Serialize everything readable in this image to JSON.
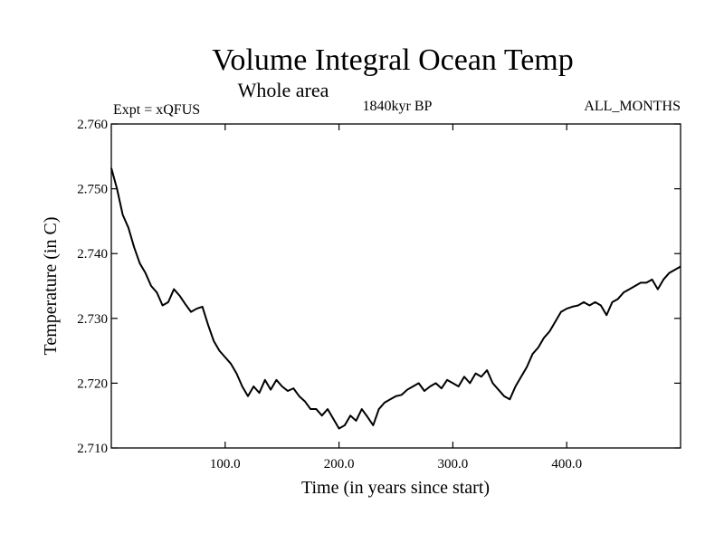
{
  "chart_data": {
    "type": "line",
    "title": "Volume Integral Ocean Temp",
    "subtitle": "Whole area",
    "period_label": "1840kyr BP",
    "experiment_label": "Expt = xQFUS",
    "months_label": "ALL_MONTHS",
    "xlabel": "Time (in years since start)",
    "ylabel": "Temperature (in C)",
    "xlim": [
      0,
      500
    ],
    "ylim": [
      2.71,
      2.76
    ],
    "x_ticks": [
      100,
      200,
      300,
      400
    ],
    "x_tick_labels": [
      "100.0",
      "200.0",
      "300.0",
      "400.0"
    ],
    "y_ticks": [
      2.71,
      2.72,
      2.73,
      2.74,
      2.75,
      2.76
    ],
    "y_tick_labels": [
      "2.710",
      "2.720",
      "2.730",
      "2.740",
      "2.750",
      "2.760"
    ],
    "series": [
      {
        "name": "Volume integral ocean temperature",
        "color": "#000000",
        "x": [
          0,
          5,
          10,
          15,
          20,
          25,
          30,
          35,
          40,
          45,
          50,
          55,
          60,
          65,
          70,
          75,
          80,
          85,
          90,
          95,
          100,
          105,
          110,
          115,
          120,
          125,
          130,
          135,
          140,
          145,
          150,
          155,
          160,
          165,
          170,
          175,
          180,
          185,
          190,
          195,
          200,
          205,
          210,
          215,
          220,
          225,
          230,
          235,
          240,
          245,
          250,
          255,
          260,
          265,
          270,
          275,
          280,
          285,
          290,
          295,
          300,
          305,
          310,
          315,
          320,
          325,
          330,
          335,
          340,
          345,
          350,
          355,
          360,
          365,
          370,
          375,
          380,
          385,
          390,
          395,
          400,
          405,
          410,
          415,
          420,
          425,
          430,
          435,
          440,
          445,
          450,
          455,
          460,
          465,
          470,
          475,
          480,
          485,
          490,
          495,
          500
        ],
        "values": [
          2.7532,
          2.75,
          2.746,
          2.744,
          2.741,
          2.7385,
          2.737,
          2.735,
          2.734,
          2.732,
          2.7325,
          2.7345,
          2.7335,
          2.7322,
          2.731,
          2.7315,
          2.7318,
          2.729,
          2.7265,
          2.725,
          2.724,
          2.723,
          2.7215,
          2.7195,
          2.718,
          2.7195,
          2.7185,
          2.7205,
          2.719,
          2.7205,
          2.7195,
          2.7188,
          2.7192,
          2.718,
          2.7172,
          2.716,
          2.716,
          2.715,
          2.716,
          2.7145,
          2.713,
          2.7135,
          2.715,
          2.7142,
          2.716,
          2.7148,
          2.7135,
          2.716,
          2.717,
          2.7175,
          2.718,
          2.7182,
          2.719,
          2.7195,
          2.72,
          2.7188,
          2.7195,
          2.72,
          2.7192,
          2.7205,
          2.72,
          2.7195,
          2.721,
          2.72,
          2.7215,
          2.721,
          2.722,
          2.72,
          2.719,
          2.718,
          2.7175,
          2.7195,
          2.721,
          2.7225,
          2.7245,
          2.7255,
          2.727,
          2.728,
          2.7295,
          2.731,
          2.7315,
          2.7318,
          2.732,
          2.7325,
          2.732,
          2.7325,
          2.732,
          2.7305,
          2.7325,
          2.733,
          2.734,
          2.7345,
          2.735,
          2.7355,
          2.7355,
          2.736,
          2.7345,
          2.736,
          2.737,
          2.7375,
          2.738
        ]
      }
    ]
  }
}
